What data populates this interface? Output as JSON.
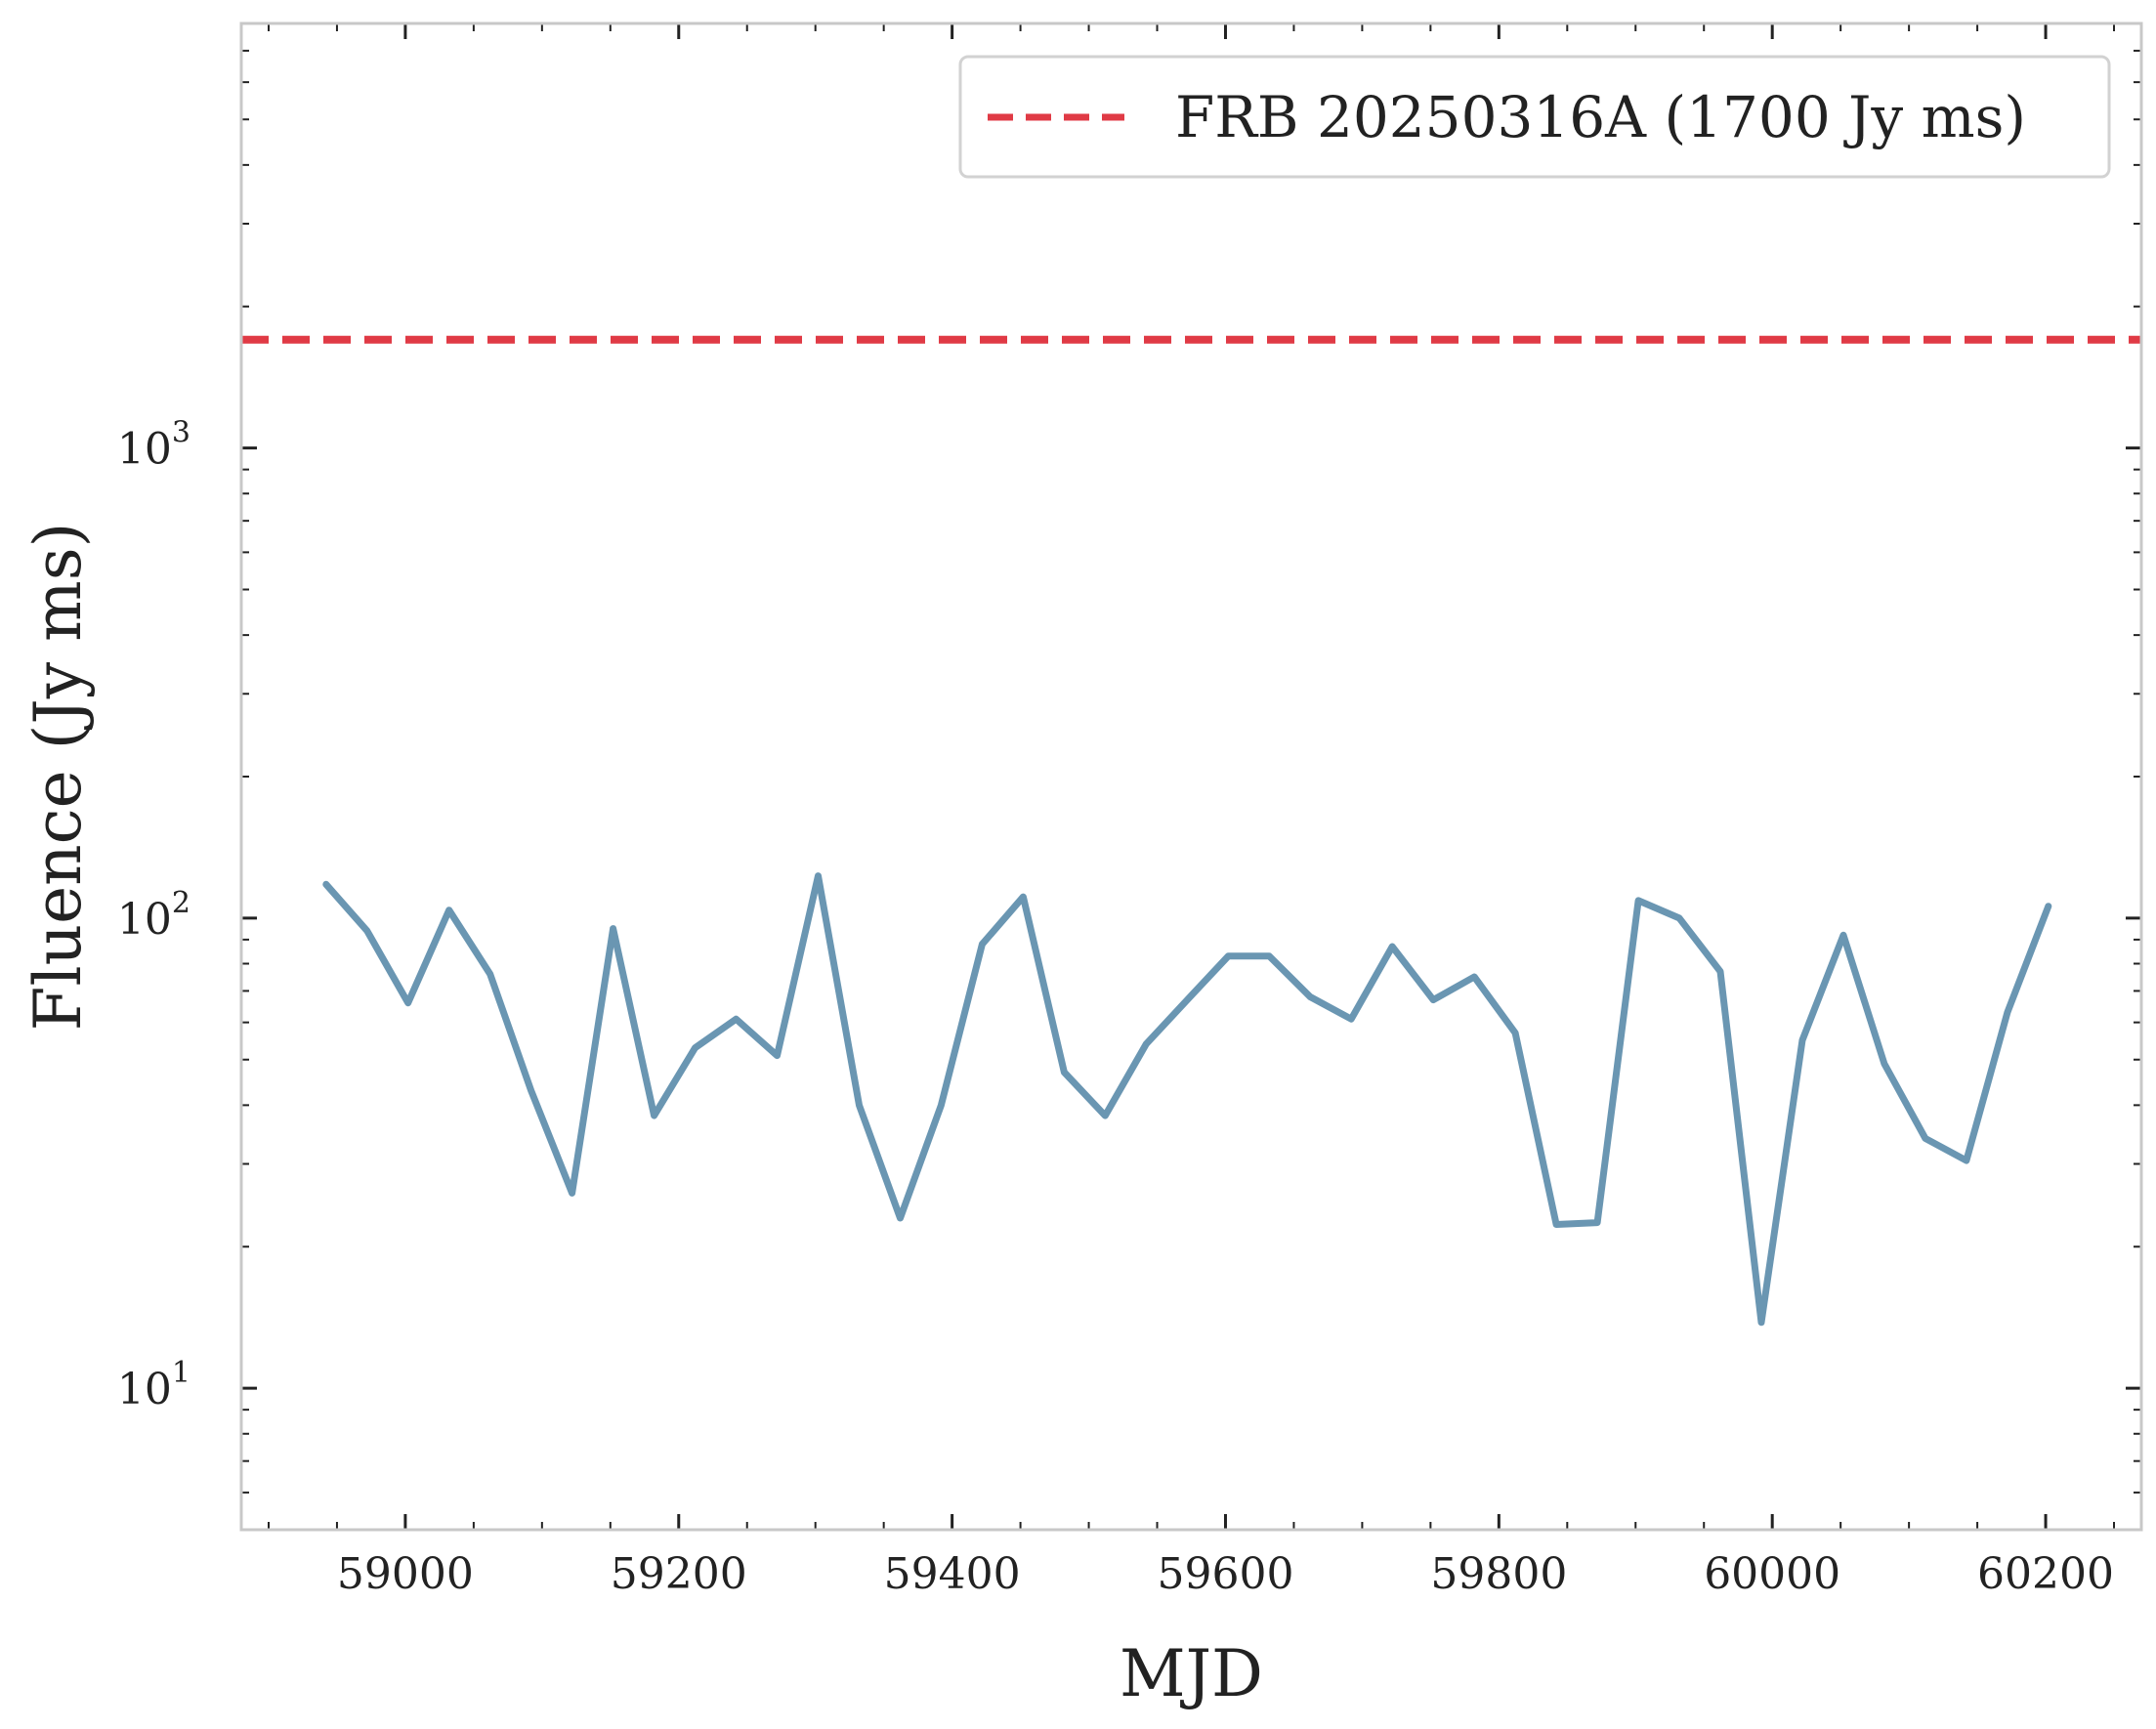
{
  "chart_data": {
    "type": "line",
    "xlabel": "MJD",
    "ylabel": "Fluence (Jy ms)",
    "xlim": [
      58880,
      60270
    ],
    "ylim": [
      5,
      8000
    ],
    "yscale": "log",
    "x_ticks": [
      {
        "value": 59000,
        "label": "59000"
      },
      {
        "value": 59200,
        "label": "59200"
      },
      {
        "value": 59400,
        "label": "59400"
      },
      {
        "value": 59600,
        "label": "59600"
      },
      {
        "value": 59800,
        "label": "59800"
      },
      {
        "value": 60000,
        "label": "60000"
      },
      {
        "value": 60200,
        "label": "60200"
      }
    ],
    "y_ticks": [
      {
        "value": 10,
        "base": "10",
        "exp": "1"
      },
      {
        "value": 100,
        "base": "10",
        "exp": "2"
      },
      {
        "value": 1000,
        "base": "10",
        "exp": "3"
      }
    ],
    "grid": false,
    "legend_position": "top-right",
    "series": [
      {
        "color": "#6a96b2",
        "style": "solid",
        "x": [
          58942,
          58972,
          59002,
          59032,
          59062,
          59092,
          59122,
          59152,
          59182,
          59212,
          59242,
          59272,
          59302,
          59332,
          59362,
          59392,
          59422,
          59452,
          59482,
          59512,
          59542,
          59572,
          59602,
          59632,
          59662,
          59692,
          59722,
          59752,
          59782,
          59812,
          59842,
          59872,
          59902,
          59932,
          59962,
          59992,
          60022,
          60052,
          60082,
          60112,
          60142,
          60172,
          60202
        ],
        "y": [
          118,
          94,
          66,
          104,
          76,
          43,
          26,
          95,
          38,
          53,
          61,
          51,
          123,
          40,
          23,
          40,
          88,
          111,
          47,
          38,
          54,
          67,
          83,
          83,
          68,
          61,
          87,
          67,
          75,
          57,
          22.3,
          22.5,
          109,
          100,
          77,
          13.8,
          55,
          92,
          49,
          34,
          30.5,
          63,
          106
        ]
      },
      {
        "name": "FRB 20250316A (1700 Jy ms)",
        "color": "#e03a45",
        "style": "dashed",
        "type": "hline",
        "y": 1700
      }
    ]
  }
}
